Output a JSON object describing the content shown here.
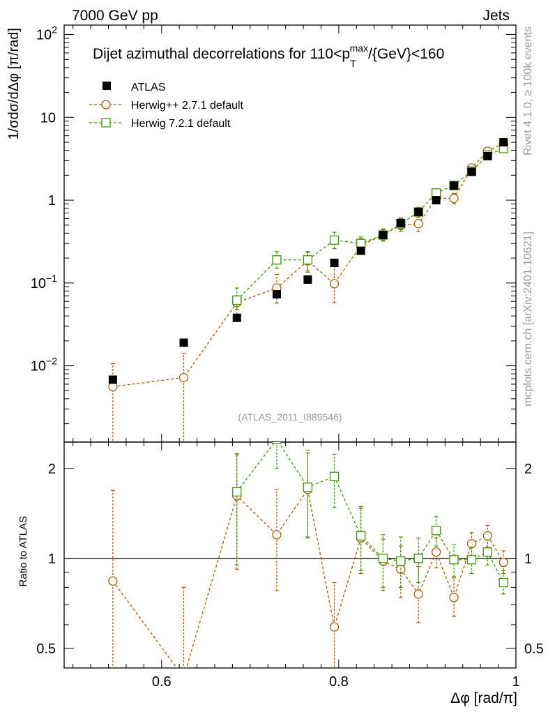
{
  "header": {
    "left": "7000 GeV pp",
    "right": "Jets"
  },
  "side_labels": {
    "upper": "Rivet 4.1.0, ≥ 100k events",
    "lower": "mcplots.cern.ch [arXiv:2401.10621]"
  },
  "chart_data": [
    {
      "type": "scatter",
      "panel": "main",
      "title": "Dijet azimuthal decorrelations for 110<p_T^max/{GeV}<160",
      "title_prefix": "Dijet azimuthal decorrelations for 110<p",
      "title_sub": "T",
      "title_sup": "max",
      "title_suffix": "/{GeV}<160",
      "ylabel": "1/σdσ/dΔφ [π/rad]",
      "xlabel": "",
      "yscale": "log",
      "xlim": [
        0.49,
        1.0
      ],
      "ylim": [
        0.0012,
        130
      ],
      "watermark": "(ATLAS_2011_I889546)",
      "yticks": [
        {
          "value": 0.01,
          "label": "10",
          "exp": "−2"
        },
        {
          "value": 0.1,
          "label": "10",
          "exp": "−1"
        },
        {
          "value": 1,
          "label": "1",
          "exp": ""
        },
        {
          "value": 10,
          "label": "10",
          "exp": ""
        },
        {
          "value": 100,
          "label": "10",
          "exp": "2"
        }
      ],
      "legend": [
        {
          "name": "ATLAS",
          "marker": "square-filled",
          "color": "#000000"
        },
        {
          "name": "Herwig++ 2.7.1 default",
          "marker": "circle-open",
          "color": "#b35900"
        },
        {
          "name": "Herwig 7.2.1 default",
          "marker": "square-open",
          "color": "#3a9a00"
        }
      ],
      "series": [
        {
          "name": "ATLAS",
          "x": [
            0.545,
            0.625,
            0.685,
            0.73,
            0.765,
            0.795,
            0.825,
            0.85,
            0.87,
            0.89,
            0.91,
            0.93,
            0.95,
            0.968,
            0.986
          ],
          "y": [
            0.0068,
            0.019,
            0.038,
            0.073,
            0.11,
            0.175,
            0.245,
            0.38,
            0.53,
            0.72,
            1.0,
            1.5,
            2.2,
            3.4,
            5.0
          ]
        },
        {
          "name": "Herwig++ 2.7.1 default",
          "x": [
            0.545,
            0.625,
            0.685,
            0.73,
            0.765,
            0.795,
            0.825,
            0.85,
            0.87,
            0.89,
            0.91,
            0.93,
            0.95,
            0.968,
            0.986
          ],
          "y": [
            0.0056,
            0.0072,
            0.058,
            0.087,
            0.185,
            0.098,
            0.285,
            0.38,
            0.5,
            0.52,
            1.05,
            1.05,
            2.45,
            3.9,
            4.9
          ],
          "err_lo": [
            0.0056,
            0.0072,
            0.01,
            0.03,
            0.05,
            0.04,
            0.05,
            0.05,
            0.08,
            0.1,
            0.1,
            0.15,
            0.2,
            0.3,
            0.3
          ],
          "err_hi": [
            0.005,
            0.007,
            0.012,
            0.04,
            0.05,
            0.06,
            0.06,
            0.06,
            0.1,
            0.12,
            0.1,
            0.15,
            0.2,
            0.3,
            0.4
          ]
        },
        {
          "name": "Herwig 7.2.1 default",
          "x": [
            0.685,
            0.73,
            0.765,
            0.795,
            0.825,
            0.85,
            0.87,
            0.89,
            0.91,
            0.93,
            0.95,
            0.968,
            0.986
          ],
          "y": [
            0.062,
            0.19,
            0.19,
            0.33,
            0.3,
            0.38,
            0.52,
            0.72,
            1.22,
            1.5,
            2.25,
            3.5,
            4.2
          ],
          "err_lo": [
            0.02,
            0.04,
            0.05,
            0.07,
            0.06,
            0.06,
            0.08,
            0.1,
            0.15,
            0.15,
            0.2,
            0.3,
            0.3
          ],
          "err_hi": [
            0.025,
            0.05,
            0.05,
            0.08,
            0.06,
            0.07,
            0.09,
            0.1,
            0.15,
            0.15,
            0.2,
            0.3,
            0.4
          ]
        }
      ]
    },
    {
      "type": "line",
      "panel": "ratio",
      "ylabel": "Ratio to ATLAS",
      "xlabel": "Δφ [rad/π]",
      "yscale": "log",
      "xlim": [
        0.49,
        1.0
      ],
      "ylim": [
        0.43,
        2.45
      ],
      "reference_line": 1,
      "yticks": [
        {
          "value": 0.5,
          "label": "0.5"
        },
        {
          "value": 1,
          "label": "1"
        },
        {
          "value": 2,
          "label": "2"
        }
      ],
      "xticks": [
        {
          "value": 0.6,
          "label": "0.6"
        },
        {
          "value": 0.8,
          "label": "0.8"
        },
        {
          "value": 1.0,
          "label": "1"
        }
      ],
      "series": [
        {
          "name": "Herwig++ 2.7.1 default",
          "x": [
            0.545,
            0.625,
            0.685,
            0.73,
            0.765,
            0.795,
            0.825,
            0.85,
            0.87,
            0.89,
            0.91,
            0.93,
            0.95,
            0.968,
            0.986
          ],
          "y": [
            0.84,
            0.4,
            1.62,
            1.2,
            1.7,
            0.59,
            1.17,
            0.98,
            0.92,
            0.76,
            1.05,
            0.74,
            1.12,
            1.19,
            0.97
          ],
          "err_lo": [
            0.8,
            0.4,
            0.7,
            0.42,
            0.53,
            0.24,
            0.28,
            0.2,
            0.18,
            0.15,
            0.12,
            0.1,
            0.1,
            0.1,
            0.08
          ],
          "err_hi": [
            0.85,
            0.4,
            0.62,
            0.5,
            0.6,
            0.24,
            0.3,
            0.18,
            0.18,
            0.18,
            0.12,
            0.12,
            0.1,
            0.1,
            0.09
          ]
        },
        {
          "name": "Herwig 7.2.1 default",
          "x": [
            0.685,
            0.73,
            0.765,
            0.795,
            0.825,
            0.85,
            0.87,
            0.89,
            0.91,
            0.93,
            0.95,
            0.968,
            0.986
          ],
          "y": [
            1.67,
            2.5,
            1.73,
            1.88,
            1.19,
            1.0,
            0.98,
            1.0,
            1.24,
            0.99,
            0.99,
            1.05,
            0.83
          ],
          "err_lo": [
            0.72,
            0.5,
            0.55,
            0.4,
            0.28,
            0.2,
            0.18,
            0.17,
            0.14,
            0.12,
            0.1,
            0.1,
            0.07
          ],
          "err_hi": [
            0.55,
            0.2,
            0.52,
            0.35,
            0.3,
            0.2,
            0.2,
            0.17,
            0.14,
            0.12,
            0.1,
            0.1,
            0.08
          ]
        }
      ]
    }
  ]
}
